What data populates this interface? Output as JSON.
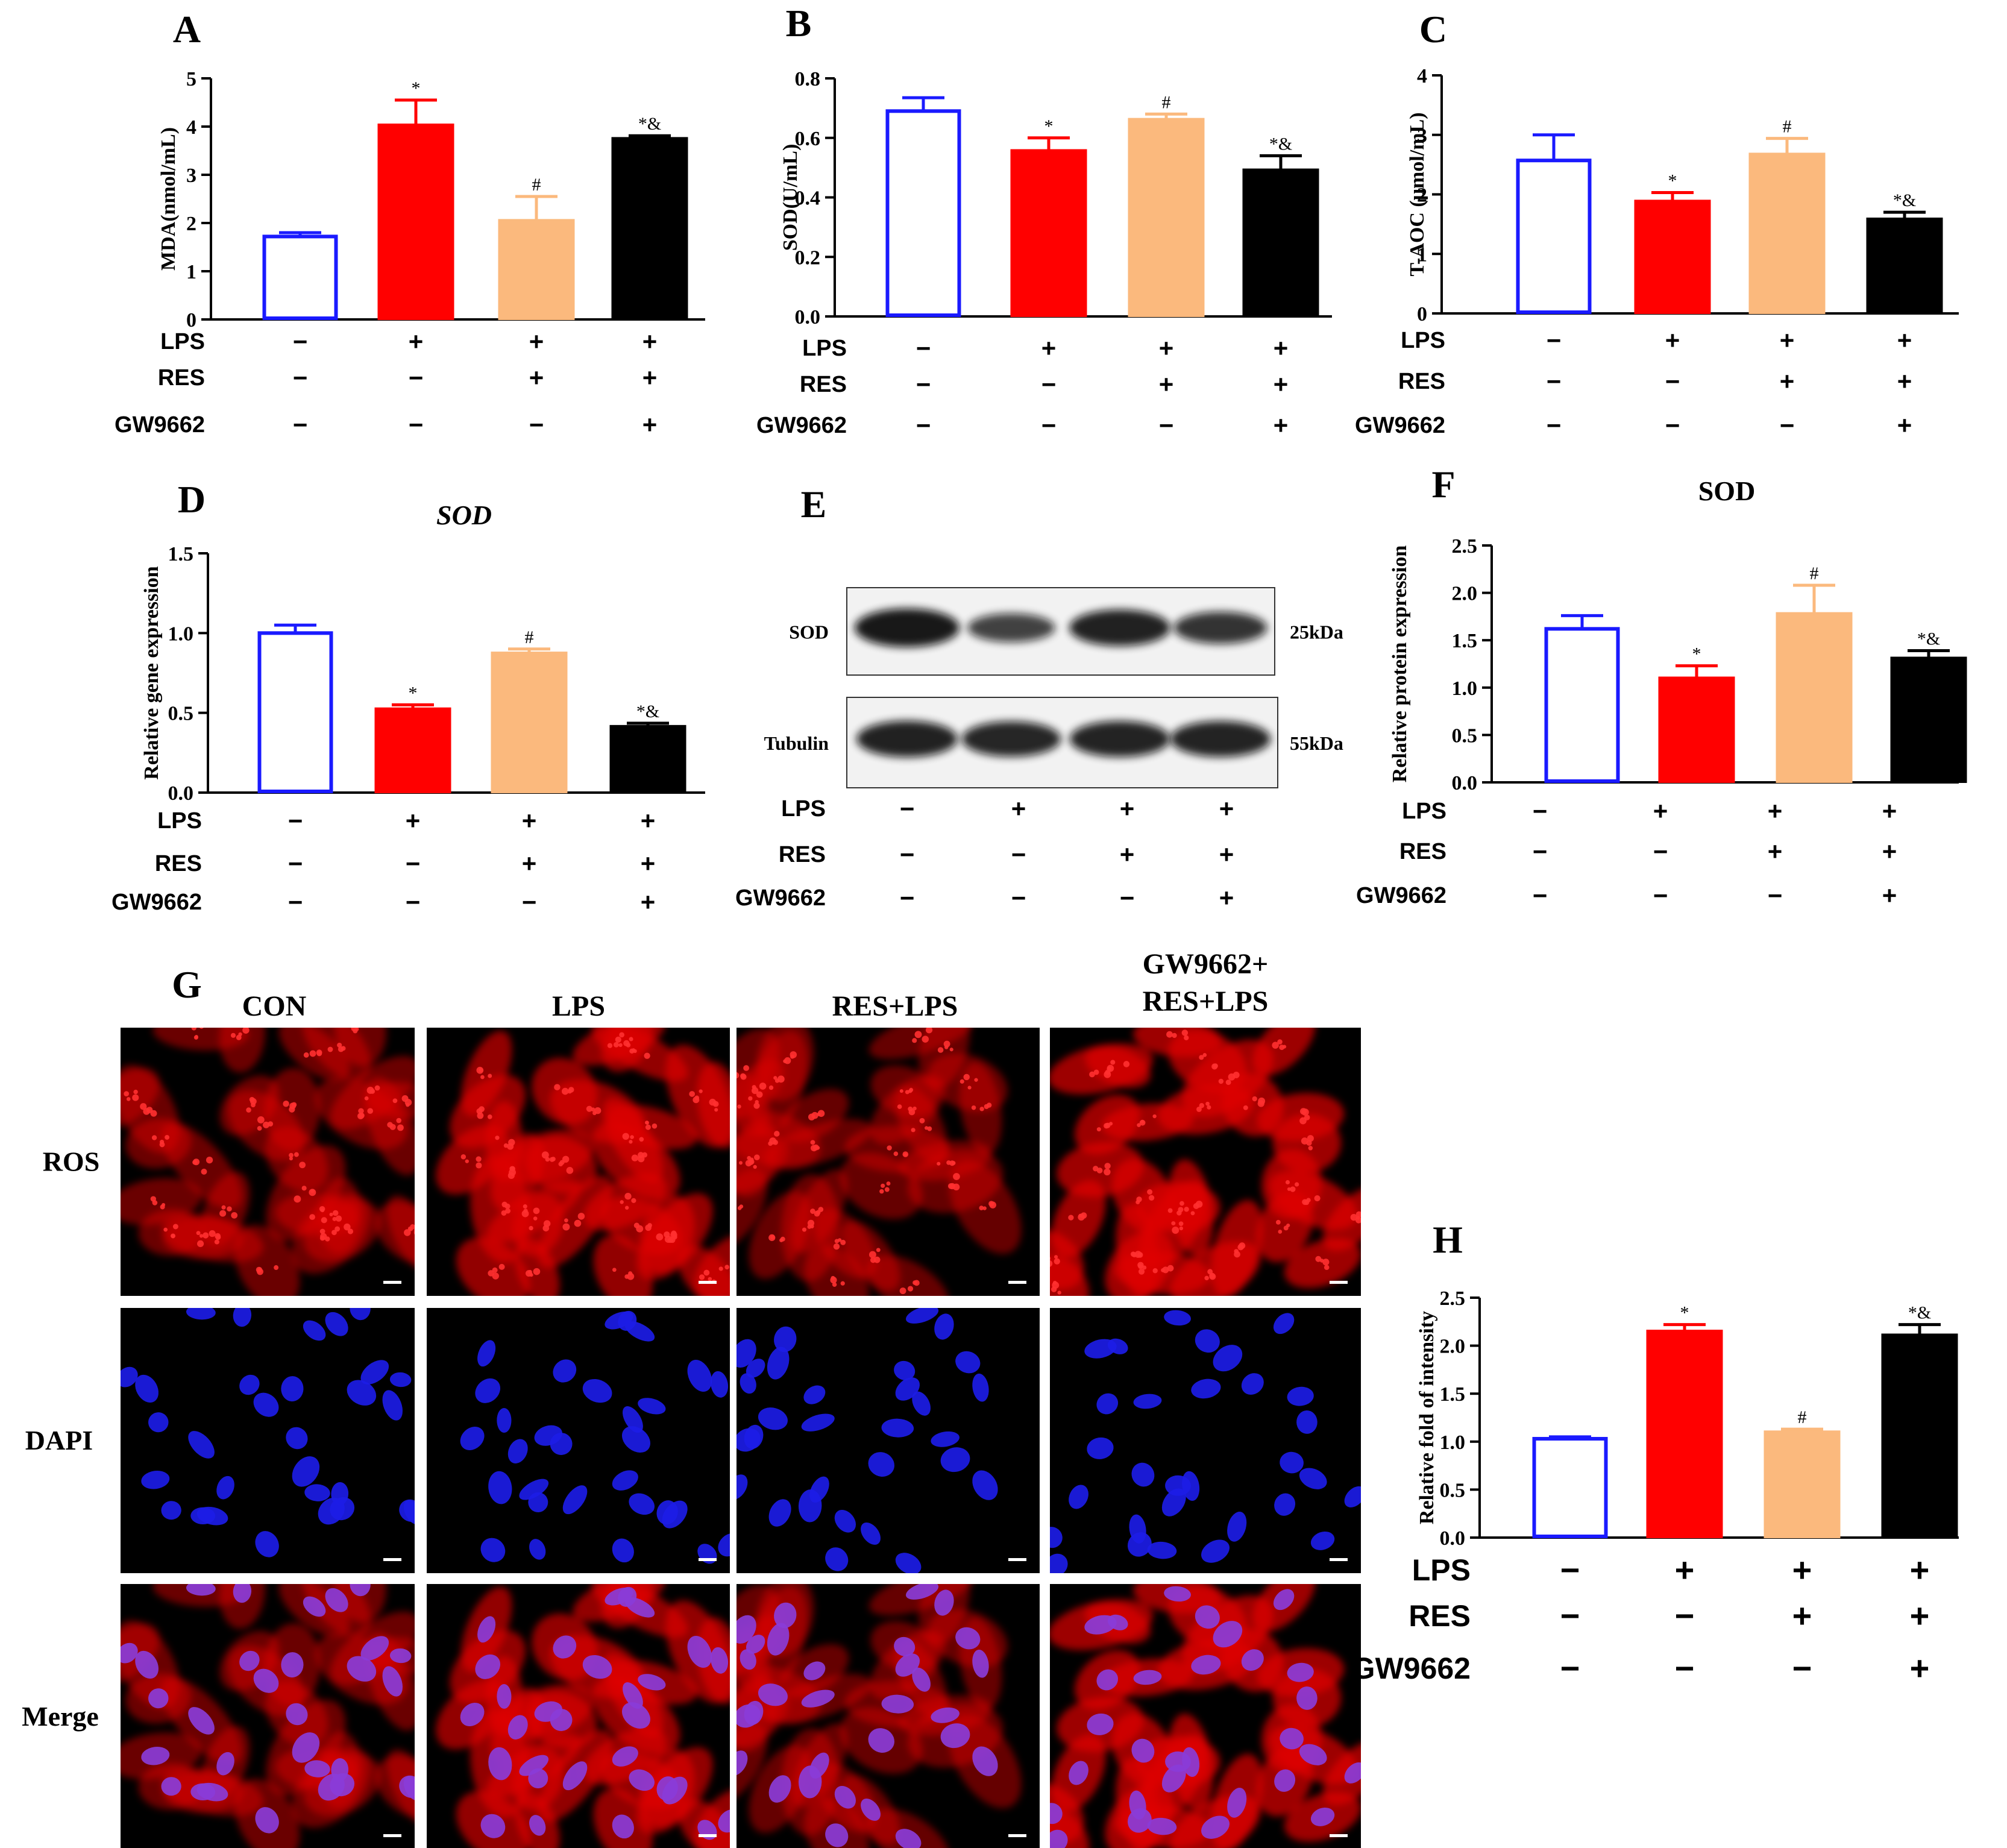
{
  "colors": {
    "con": "#1a1aff",
    "lps": "#ff0000",
    "res": "#fbb97d",
    "gw": "#000000",
    "ros": "#e00000",
    "dapi": "#1c1ce6",
    "merge_nuc": "#8a3cd8"
  },
  "condition_rows": {
    "labels": [
      "LPS",
      "RES",
      "GW9662"
    ],
    "signs": [
      [
        "−",
        "+",
        "+",
        "+"
      ],
      [
        "−",
        "−",
        "+",
        "+"
      ],
      [
        "−",
        "−",
        "−",
        "+"
      ]
    ]
  },
  "chart_data": [
    {
      "panel": "A",
      "type": "bar",
      "title": "",
      "ylabel": "MDA(nmol/mL)",
      "ylim": [
        0,
        5
      ],
      "yticks": [
        0,
        1,
        2,
        3,
        4,
        5
      ],
      "values": [
        1.72,
        4.05,
        2.07,
        3.77
      ],
      "errors": [
        0.08,
        0.5,
        0.48,
        0.04
      ],
      "annotations": [
        "",
        "*",
        "#",
        "*&"
      ]
    },
    {
      "panel": "B",
      "type": "bar",
      "title": "",
      "ylabel": "SOD(U/mL)",
      "ylim": [
        0,
        0.8
      ],
      "yticks": [
        "0.0",
        "0.2",
        "0.4",
        "0.6",
        "0.8"
      ],
      "values": [
        0.69,
        0.56,
        0.665,
        0.495
      ],
      "errors": [
        0.045,
        0.04,
        0.015,
        0.045
      ],
      "annotations": [
        "",
        "*",
        "#",
        "*&"
      ]
    },
    {
      "panel": "C",
      "type": "bar",
      "title": "",
      "ylabel": "T-AOC (μmol/mL)",
      "ylim": [
        0,
        4
      ],
      "yticks": [
        0,
        1,
        2,
        3,
        4
      ],
      "values": [
        2.57,
        1.9,
        2.69,
        1.6
      ],
      "errors": [
        0.43,
        0.13,
        0.25,
        0.1
      ],
      "annotations": [
        "",
        "*",
        "#",
        "*&"
      ]
    },
    {
      "panel": "D",
      "type": "bar",
      "title": "SOD",
      "ylabel": "Relative gene expression",
      "ylim": [
        0,
        1.5
      ],
      "yticks": [
        "0.0",
        "0.5",
        "1.0",
        "1.5"
      ],
      "values": [
        1.0,
        0.53,
        0.88,
        0.42
      ],
      "errors": [
        0.05,
        0.02,
        0.02,
        0.015
      ],
      "annotations": [
        "",
        "*",
        "#",
        "*&"
      ]
    },
    {
      "panel": "F",
      "type": "bar",
      "title": "SOD",
      "ylabel": "Relative protein expression",
      "ylim": [
        0,
        2.5
      ],
      "yticks": [
        "0.0",
        "0.5",
        "1.0",
        "1.5",
        "2.0",
        "2.5"
      ],
      "values": [
        1.62,
        1.11,
        1.79,
        1.32
      ],
      "errors": [
        0.14,
        0.12,
        0.29,
        0.07
      ],
      "annotations": [
        "",
        "*",
        "#",
        "*&"
      ]
    },
    {
      "panel": "H",
      "type": "bar",
      "title": "",
      "ylabel": "Relative fold of intensity",
      "ylim": [
        0,
        2.5
      ],
      "yticks": [
        "0.0",
        "0.5",
        "1.0",
        "1.5",
        "2.0",
        "2.5"
      ],
      "values": [
        1.03,
        2.16,
        1.11,
        2.12
      ],
      "errors": [
        0.02,
        0.06,
        0.02,
        0.1
      ],
      "annotations": [
        "",
        "*",
        "#",
        "*&"
      ]
    }
  ],
  "blot": {
    "panel": "E",
    "proteins": [
      {
        "name": "SOD",
        "size": "25kDa",
        "intensity": [
          1.0,
          0.55,
          0.9,
          0.7
        ]
      },
      {
        "name": "Tubulin",
        "size": "55kDa",
        "intensity": [
          0.9,
          0.85,
          0.88,
          0.88
        ]
      }
    ]
  },
  "microscopy": {
    "panel": "G",
    "columns": [
      "CON",
      "LPS",
      "RES+LPS",
      "GW9662+ RES+LPS"
    ],
    "column_lines": [
      [
        "CON"
      ],
      [
        "LPS"
      ],
      [
        "RES+LPS"
      ],
      [
        "GW9662+",
        "RES+LPS"
      ]
    ],
    "rows": [
      "ROS",
      "DAPI",
      "Merge"
    ],
    "ros_intensity": [
      0.45,
      0.8,
      0.4,
      0.9
    ]
  }
}
